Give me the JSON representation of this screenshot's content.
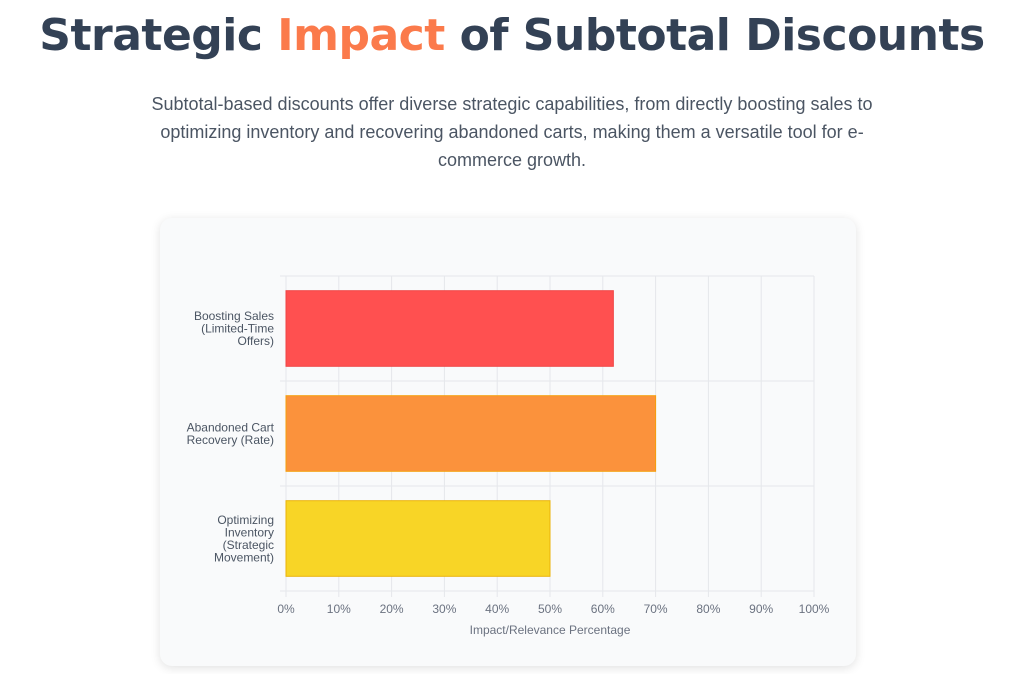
{
  "header": {
    "title_part1": "Strategic ",
    "title_accent": "Impact",
    "title_part2": " of Subtotal Discounts",
    "subtitle": "Subtotal-based discounts offer diverse strategic capabilities, from directly boosting sales to optimizing inventory and recovering abandoned carts, making them a versatile tool for e-commerce growth."
  },
  "colors": {
    "title": "#334155",
    "accent": "#fb7a4b"
  },
  "chart_data": {
    "type": "bar",
    "orientation": "horizontal",
    "categories": [
      [
        "Boosting Sales",
        "(Limited-Time",
        "Offers)"
      ],
      [
        "Abandoned Cart",
        "Recovery (Rate)"
      ],
      [
        "Optimizing",
        "Inventory",
        "(Strategic",
        "Movement)"
      ]
    ],
    "values": [
      62,
      70,
      50
    ],
    "bar_colors": [
      "#ff5050",
      "#fb923c",
      "#f8d526"
    ],
    "bar_border_colors": [
      "#ef4444",
      "#f59e0b",
      "#eab308"
    ],
    "xlabel": "Impact/Relevance Percentage",
    "xlim": [
      0,
      100
    ],
    "xticks": [
      0,
      10,
      20,
      30,
      40,
      50,
      60,
      70,
      80,
      90,
      100
    ],
    "tick_suffix": "%",
    "grid": true,
    "legend": false
  }
}
